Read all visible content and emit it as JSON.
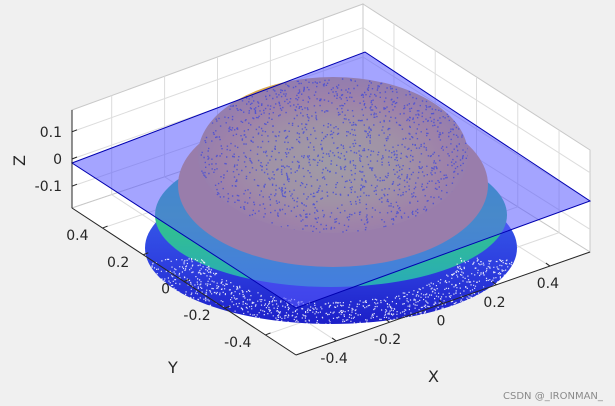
{
  "chart_data": {
    "type": "scatter3d",
    "title": "",
    "xlabel": "X",
    "ylabel": "Y",
    "zlabel": "Z",
    "xlim": [
      -0.55,
      0.55
    ],
    "ylim": [
      -0.55,
      0.55
    ],
    "zlim": [
      -0.18,
      0.18
    ],
    "xticks": [
      "-0.4",
      "-0.2",
      "0",
      "0.2",
      "0.4"
    ],
    "yticks": [
      "-0.4",
      "-0.2",
      "0",
      "0.2",
      "0.4"
    ],
    "zticks": [
      "-0.1",
      "0",
      "0.1"
    ],
    "grid": true,
    "colormap": "parula",
    "series": [
      {
        "kind": "surface-plane",
        "z": 0,
        "extent": {
          "x": [
            -0.55,
            0.55
          ],
          "y": [
            -0.55,
            0.55
          ]
        },
        "color": "#6a6aff",
        "edge_color": "#0000aa"
      },
      {
        "kind": "point-cloud",
        "shape": "spherical cap on cylinder",
        "radius": 0.5,
        "z_range": [
          -0.17,
          0.17
        ],
        "cap_top_radius": 0.34,
        "colormap": "parula"
      }
    ]
  },
  "watermark": "CSDN @_IRONMAN_"
}
